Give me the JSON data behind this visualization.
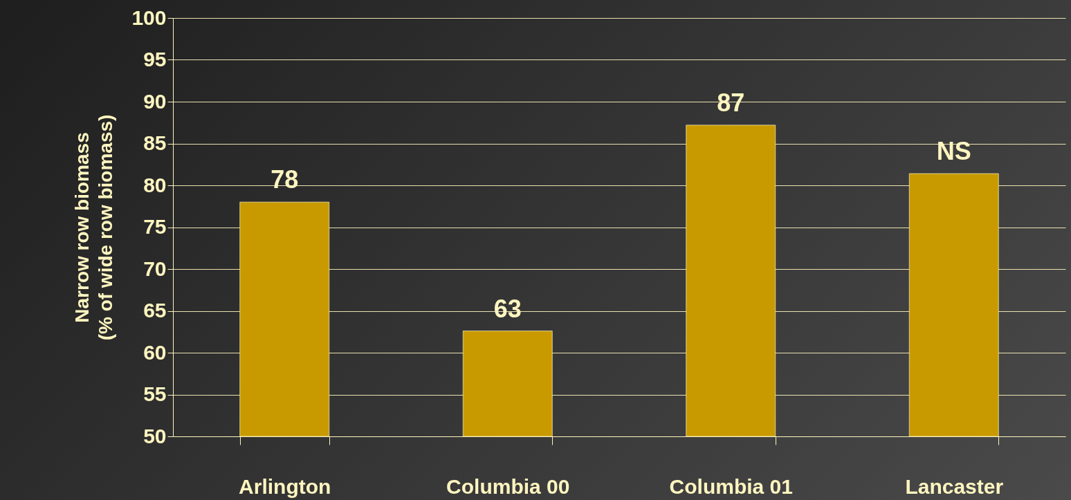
{
  "chart_data": {
    "type": "bar",
    "ylabel": "Narrow row biomass\n(% of wide row biomass)",
    "categories": [
      "Arlington",
      "Columbia 00",
      "Columbia 01",
      "Lancaster"
    ],
    "values": [
      78,
      62.6,
      87.2,
      81.4
    ],
    "value_labels": [
      "78",
      "63",
      "87",
      "NS"
    ],
    "color": "#c89a00",
    "ylim": [
      50,
      100
    ],
    "yticks": [
      50,
      55,
      60,
      65,
      70,
      75,
      80,
      85,
      90,
      95,
      100
    ],
    "grid": "y"
  }
}
